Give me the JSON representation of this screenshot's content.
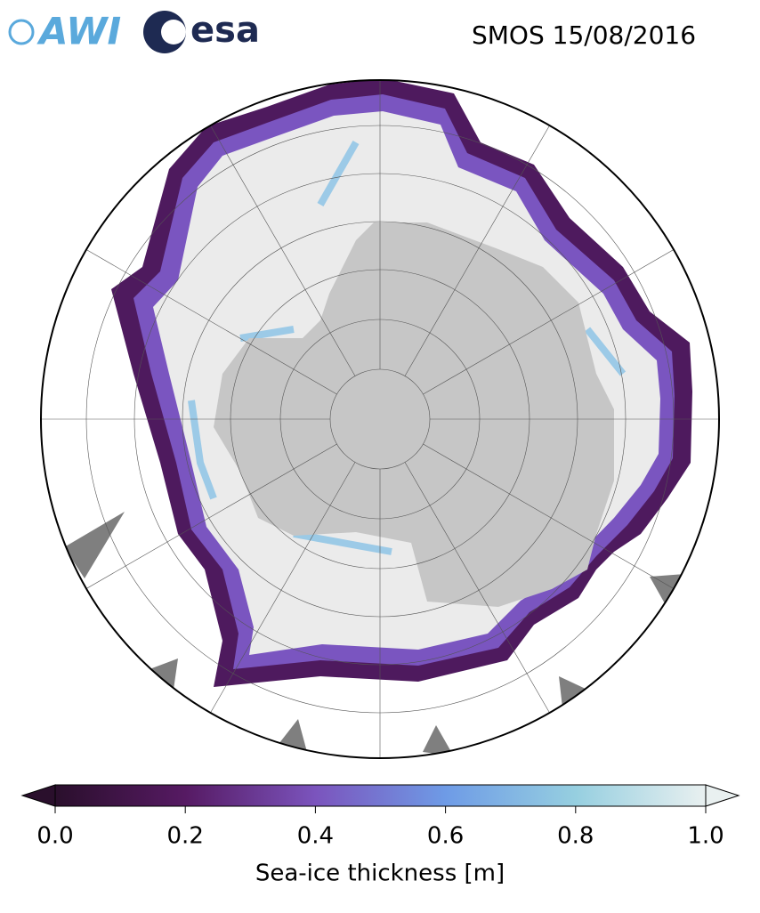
{
  "logos": {
    "awi": "AWI",
    "esa": "esa"
  },
  "title": "SMOS 15/08/2016",
  "colorbar": {
    "label": "Sea-ice thickness [m]",
    "lim": [
      0,
      1
    ],
    "ticks": [
      {
        "value": 0,
        "label": "0.0"
      },
      {
        "value": 0.2,
        "label": "0.2"
      },
      {
        "value": 0.4,
        "label": "0.4"
      },
      {
        "value": 0.6,
        "label": "0.6"
      },
      {
        "value": 0.8,
        "label": "0.8"
      },
      {
        "value": 1,
        "label": "1.0"
      }
    ],
    "colors": [
      "#2a0f2c",
      "#561a63",
      "#7b54bd",
      "#6e9be6",
      "#96cfe0",
      "#e9f0f0"
    ]
  }
}
